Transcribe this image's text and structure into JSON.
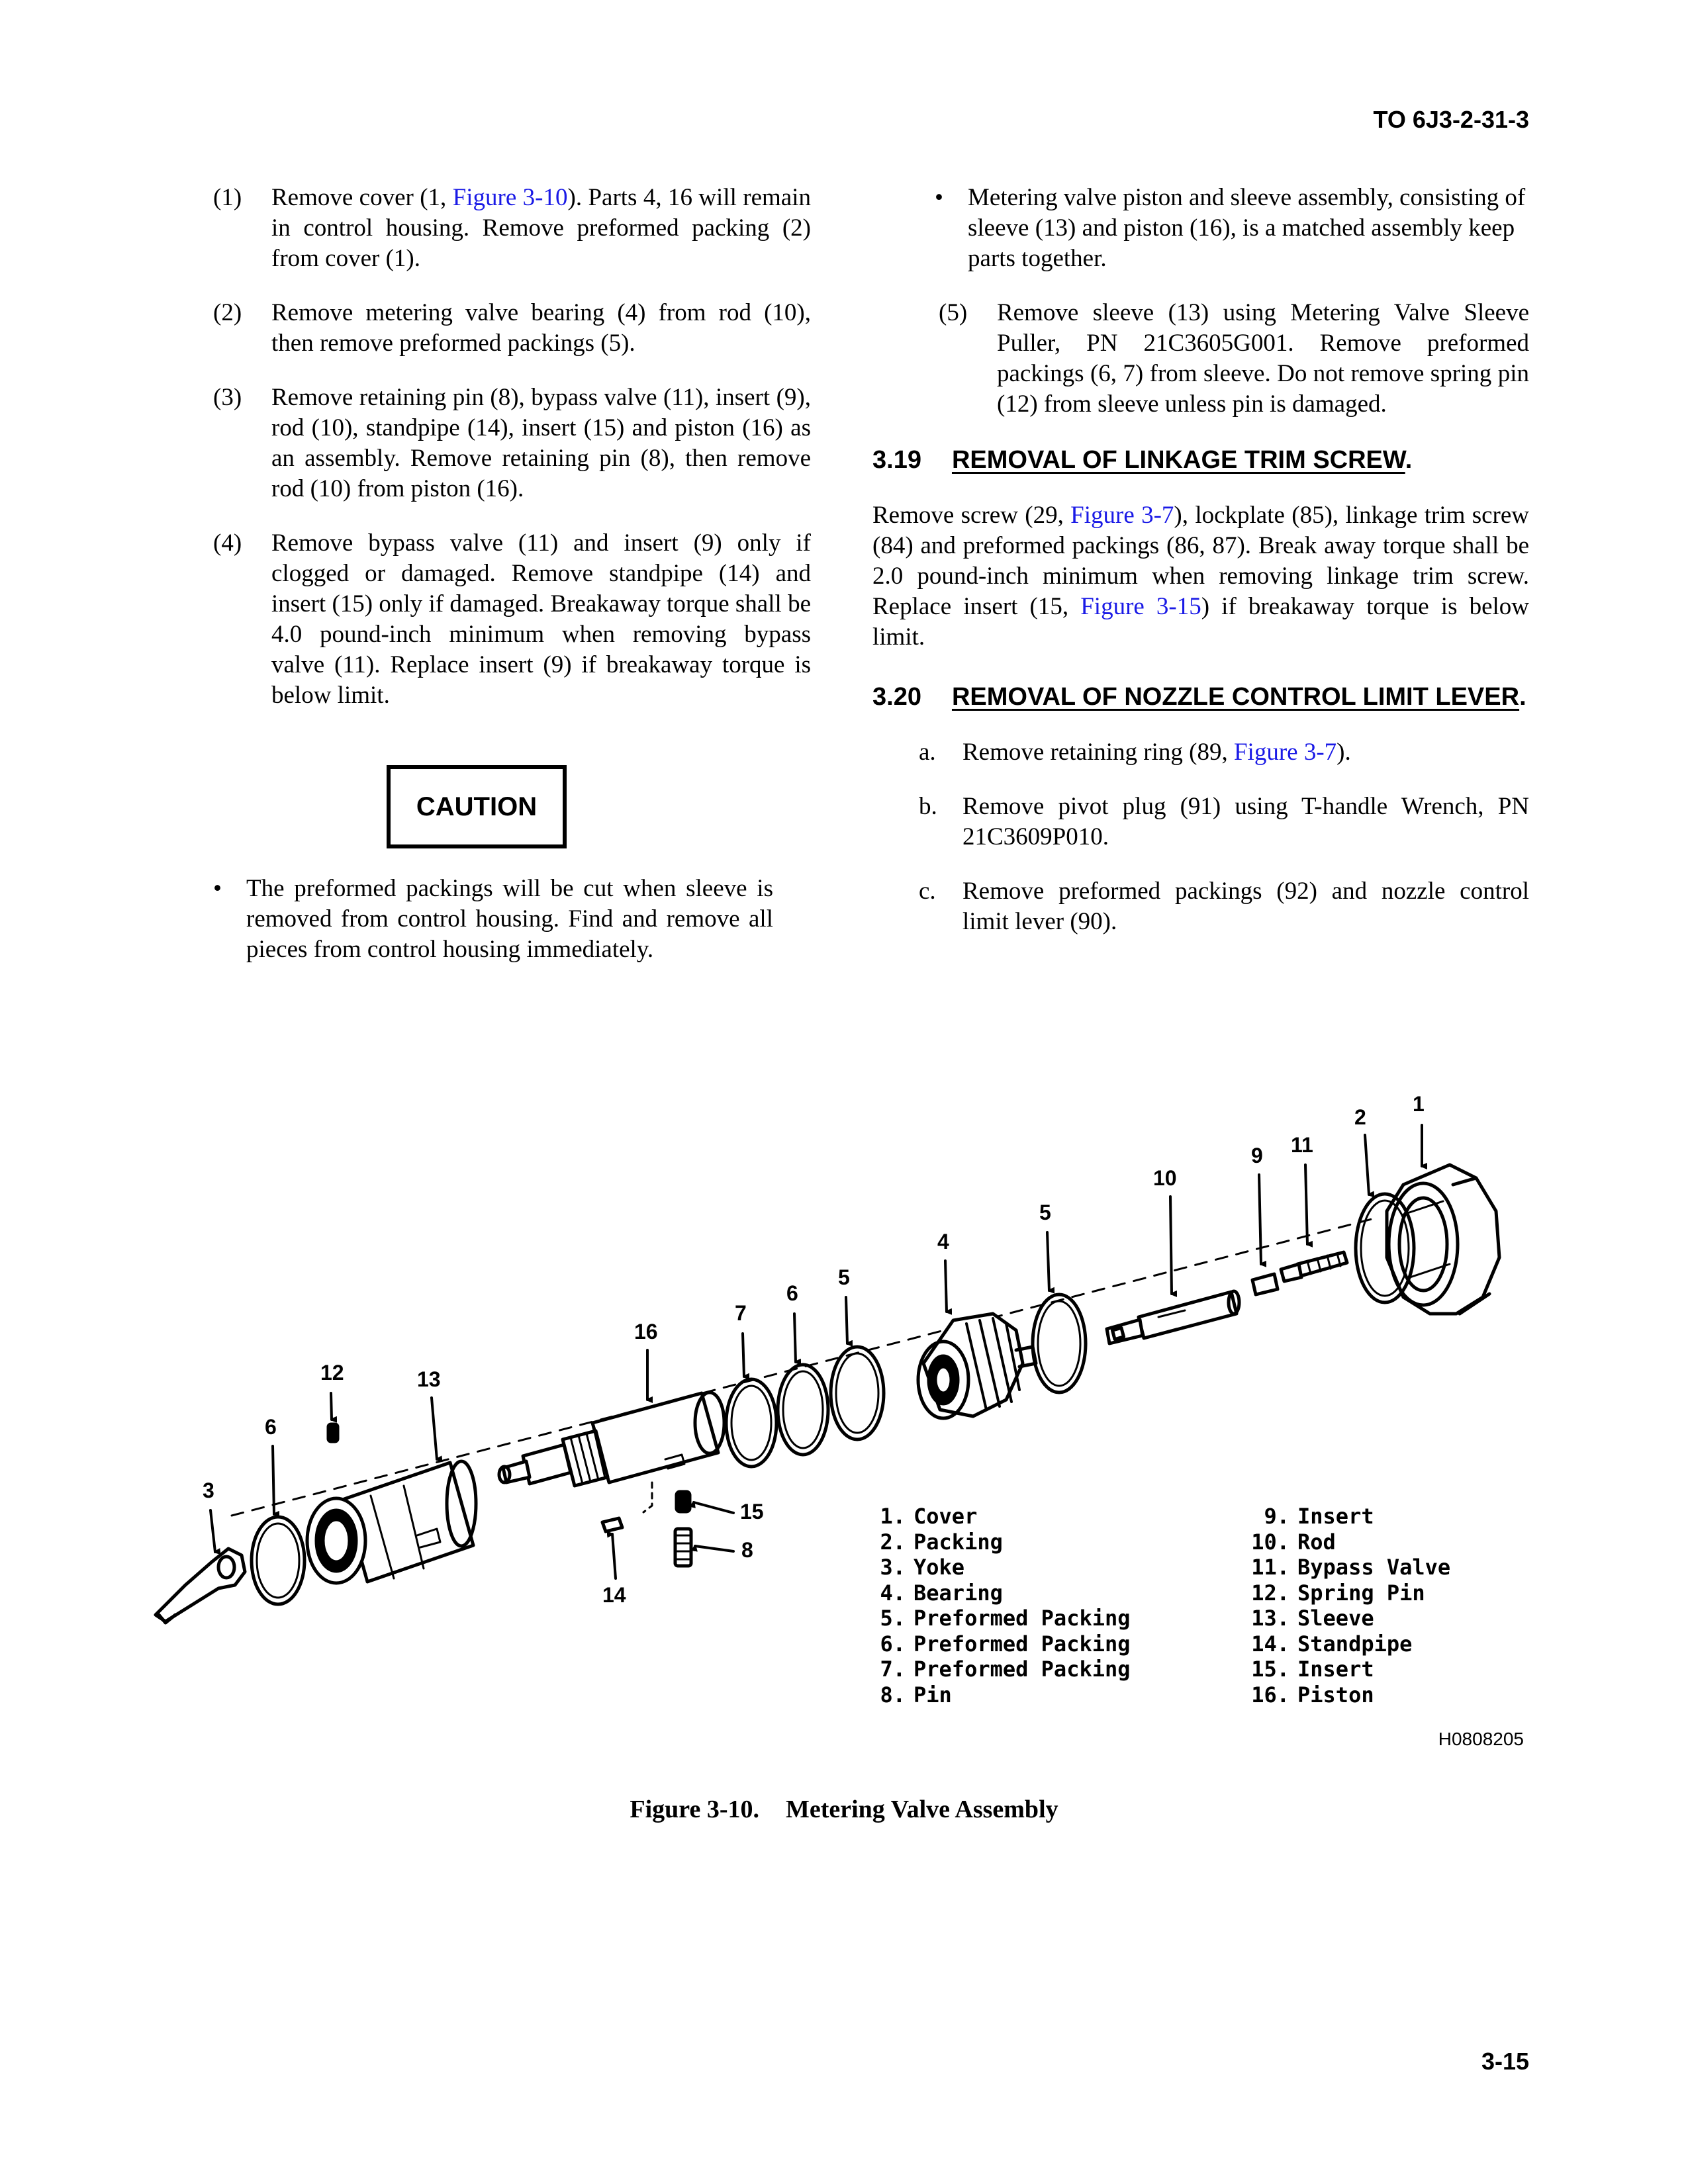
{
  "header": {
    "doc_number": "TO 6J3-2-31-3"
  },
  "left_column": {
    "steps": [
      {
        "num": "(1)",
        "parts": [
          "Remove cover (1, ",
          "Figure 3-10",
          "). Parts 4, 16 will remain in control housing. Remove preformed packing (2) from cover (1)."
        ]
      },
      {
        "num": "(2)",
        "text": "Remove metering valve bearing (4) from rod (10), then remove preformed packings (5)."
      },
      {
        "num": "(3)",
        "text": "Remove retaining pin (8), bypass valve (11), insert (9), rod (10), standpipe (14), insert (15) and piston (16) as an assembly. Remove retaining pin (8), then remove rod (10) from piston (16)."
      },
      {
        "num": "(4)",
        "text": "Remove bypass valve (11) and insert (9) only if clogged or damaged. Remove standpipe (14) and insert (15) only if damaged. Breakaway torque shall be 4.0 pound-inch minimum when removing bypass valve (11). Replace insert (9) if breakaway torque is below limit."
      }
    ],
    "caution_label": "CAUTION",
    "caution_text": "The preformed packings will be cut when sleeve is removed from control housing. Find and remove all pieces from control housing immediately."
  },
  "right_column": {
    "note": "Metering valve piston and sleeve assembly, consisting of sleeve (13) and piston (16), is a matched assembly keep parts together.",
    "step5": {
      "num": "(5)",
      "text": "Remove sleeve (13) using Metering Valve Sleeve Puller, PN 21C3605G001. Remove preformed packings (6, 7) from sleeve. Do not remove spring pin (12) from sleeve unless pin is damaged."
    },
    "sec319": {
      "number": "3.19",
      "title": "REMOVAL OF LINKAGE TRIM SCREW",
      "parts": [
        "Remove screw (29, ",
        "Figure 3-7",
        "), lockplate (85), linkage trim screw (84) and preformed packings (86, 87). Break away torque shall be 2.0 pound-inch minimum when removing linkage trim screw. Replace insert (15, ",
        "Figure 3-15",
        ") if breakaway torque is below limit."
      ]
    },
    "sec320": {
      "number": "3.20",
      "title": "REMOVAL OF NOZZLE CONTROL LIMIT LEVER",
      "steps": [
        {
          "num": "a.",
          "parts": [
            "Remove retaining ring (89, ",
            "Figure 3-7",
            ")."
          ]
        },
        {
          "num": "b.",
          "parts": [
            "Remove pivot plug (91) using T-handle Wrench, PN 21C3609P010."
          ]
        },
        {
          "num": "c.",
          "parts": [
            "Remove preformed packings (92) and nozzle control limit lever (90)."
          ]
        }
      ]
    }
  },
  "figure": {
    "callouts": [
      "1",
      "2",
      "11",
      "9",
      "10",
      "5",
      "4",
      "5",
      "6",
      "7",
      "16",
      "13",
      "12",
      "6",
      "3",
      "15",
      "8",
      "14"
    ],
    "legend_left": [
      {
        "n": "1.",
        "t": "Cover"
      },
      {
        "n": "2.",
        "t": "Packing"
      },
      {
        "n": "3.",
        "t": "Yoke"
      },
      {
        "n": "4.",
        "t": "Bearing"
      },
      {
        "n": "5.",
        "t": "Preformed Packing"
      },
      {
        "n": "6.",
        "t": "Preformed Packing"
      },
      {
        "n": "7.",
        "t": "Preformed Packing"
      },
      {
        "n": "8.",
        "t": "Pin"
      }
    ],
    "legend_right": [
      {
        "n": "9.",
        "t": "Insert"
      },
      {
        "n": "10.",
        "t": "Rod"
      },
      {
        "n": "11.",
        "t": "Bypass Valve"
      },
      {
        "n": "12.",
        "t": "Spring Pin"
      },
      {
        "n": "13.",
        "t": "Sleeve"
      },
      {
        "n": "14.",
        "t": "Standpipe"
      },
      {
        "n": "15.",
        "t": "Insert"
      },
      {
        "n": "16.",
        "t": "Piston"
      }
    ],
    "drawing_id": "H0808205",
    "caption_num": "Figure 3-10.",
    "caption_title": "Metering Valve Assembly"
  },
  "footer": {
    "page_number": "3-15"
  }
}
